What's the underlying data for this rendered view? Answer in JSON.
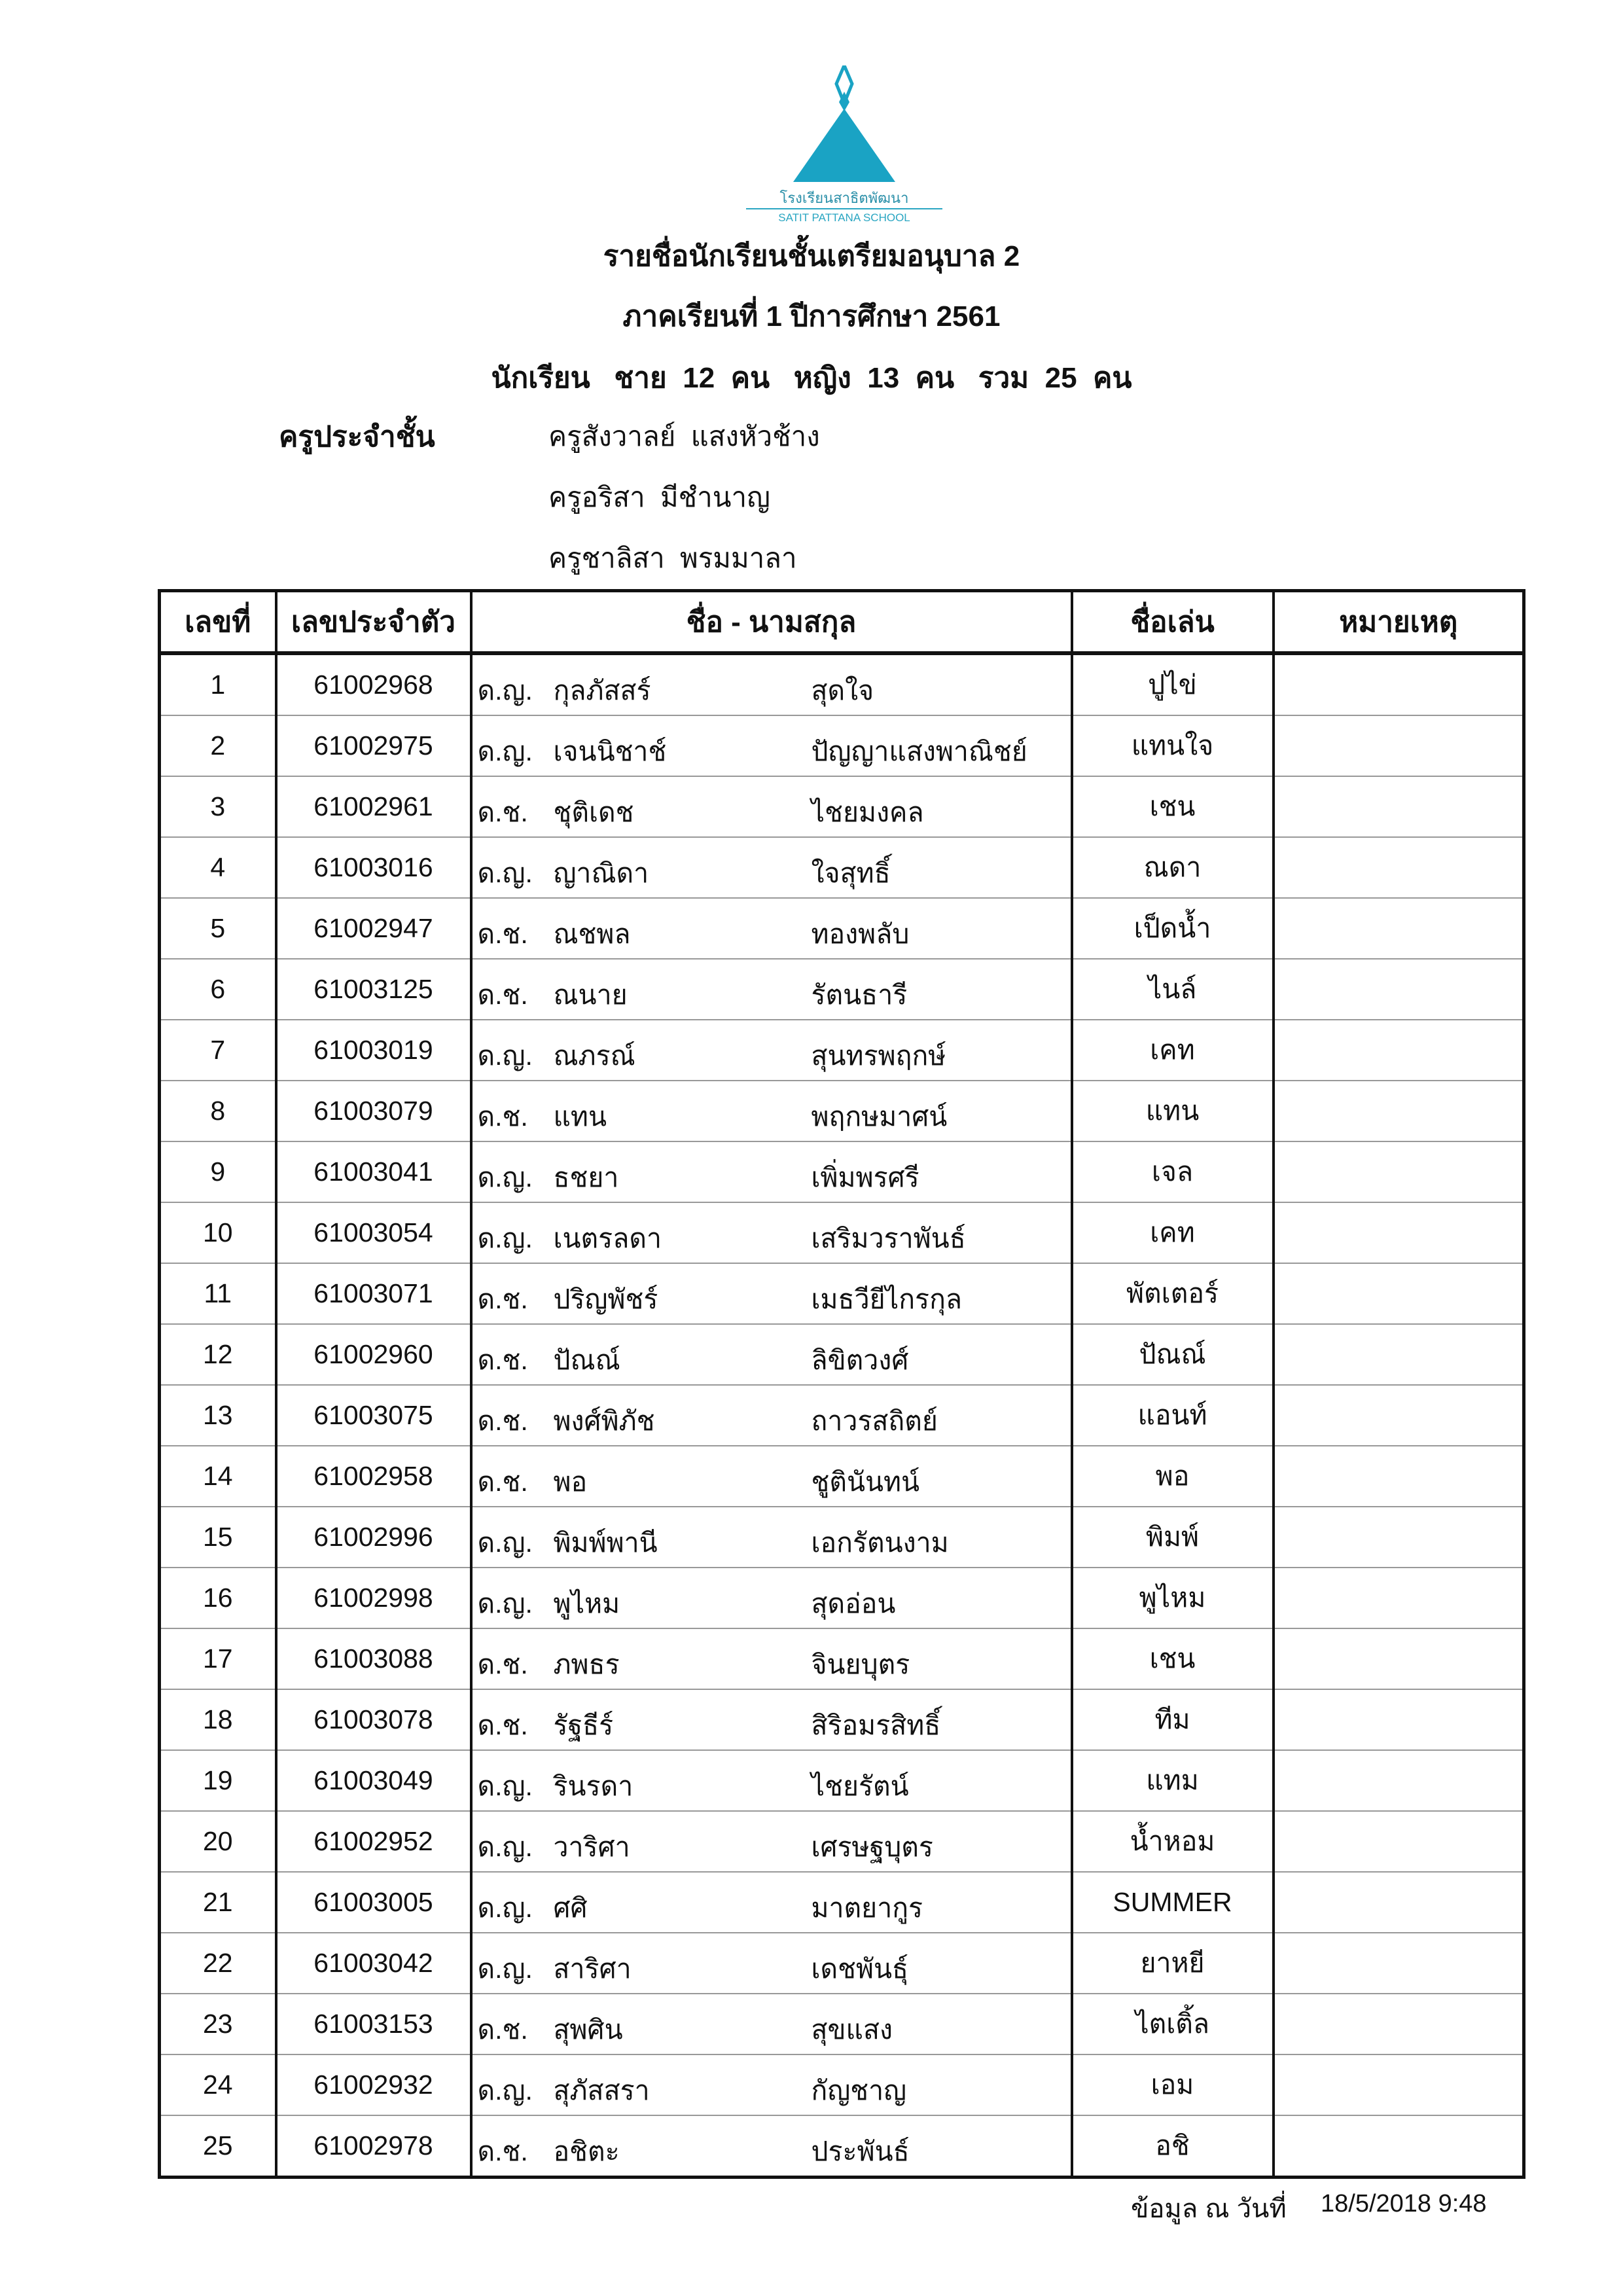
{
  "logo": {
    "name_th": "โรงเรียนสาธิตพัฒนา",
    "name_en": "SATIT PATTANA SCHOOL",
    "color": "#1aa3c4"
  },
  "header": {
    "title": "รายชื่อนักเรียนชั้นเตรียมอนุบาล 2",
    "term": "ภาคเรียนที่ 1  ปีการศึกษา  2561",
    "counts": "นักเรียน   ชาย  12  คน   หญิง  13  คน   รวม  25  คน"
  },
  "teachers": {
    "label": "ครูประจำชั้น",
    "names": [
      "ครูสังวาลย์  แสงหัวช้าง",
      "ครูอริสา  มีชำนาญ",
      "ครูชาลิสา  พรมมาลา"
    ]
  },
  "table": {
    "headers": [
      "เลขที่",
      "เลขประจำตัว",
      "ชื่อ - นามสกุล",
      "ชื่อเล่น",
      "หมายเหตุ"
    ],
    "rows": [
      [
        "1",
        "61002968",
        "ด.ญ.",
        "กุลภัสสร์",
        "สุดใจ",
        "ปูไข่",
        ""
      ],
      [
        "2",
        "61002975",
        "ด.ญ.",
        "เจนนิชาช์",
        "ปัญญาแสงพาณิชย์",
        "แทนใจ",
        ""
      ],
      [
        "3",
        "61002961",
        "ด.ช.",
        "ชุติเดช",
        "ไชยมงคล",
        "เชน",
        ""
      ],
      [
        "4",
        "61003016",
        "ด.ญ.",
        "ญาณิดา",
        "ใจสุทธิ์",
        "ณดา",
        ""
      ],
      [
        "5",
        "61002947",
        "ด.ช.",
        "ณชพล",
        "ทองพลับ",
        "เป็ดน้ำ",
        ""
      ],
      [
        "6",
        "61003125",
        "ด.ช.",
        "ณนาย",
        "รัตนธารี",
        "ไนล์",
        ""
      ],
      [
        "7",
        "61003019",
        "ด.ญ.",
        "ณภรณ์",
        "สุนทรพฤกษ์",
        "เคท",
        ""
      ],
      [
        "8",
        "61003079",
        "ด.ช.",
        "แทน",
        "พฤกษมาศน์",
        "แทน",
        ""
      ],
      [
        "9",
        "61003041",
        "ด.ญ.",
        "ธชยา",
        "เพิ่มพรศรี",
        "เจล",
        ""
      ],
      [
        "10",
        "61003054",
        "ด.ญ.",
        "เนตรลดา",
        "เสริมวราพันธ์",
        "เคท",
        ""
      ],
      [
        "11",
        "61003071",
        "ด.ช.",
        "ปริญพัชร์",
        "เมธวียีไกรกุล",
        "พัตเตอร์",
        ""
      ],
      [
        "12",
        "61002960",
        "ด.ช.",
        "ปัณณ์",
        "ลิขิตวงศ์",
        "ปัณณ์",
        ""
      ],
      [
        "13",
        "61003075",
        "ด.ช.",
        "พงศ์พิภัช",
        "ถาวรสถิตย์",
        "แอนท์",
        ""
      ],
      [
        "14",
        "61002958",
        "ด.ช.",
        "พอ",
        "ชูตินันทน์",
        "พอ",
        ""
      ],
      [
        "15",
        "61002996",
        "ด.ญ.",
        "พิมพ์พานี",
        "เอกรัตนงาม",
        "พิมพ์",
        ""
      ],
      [
        "16",
        "61002998",
        "ด.ญ.",
        "พูไหม",
        "สุดอ่อน",
        "พูไหม",
        ""
      ],
      [
        "17",
        "61003088",
        "ด.ช.",
        "ภพธร",
        "จินยบุตร",
        "เชน",
        ""
      ],
      [
        "18",
        "61003078",
        "ด.ช.",
        "รัฐธีร์",
        "สิริอมรสิทธิ์",
        "ทีม",
        ""
      ],
      [
        "19",
        "61003049",
        "ด.ญ.",
        "รินรดา",
        "ไชยรัตน์",
        "แทม",
        ""
      ],
      [
        "20",
        "61002952",
        "ด.ญ.",
        "วาริศา",
        "เศรษฐบุตร",
        "น้ำหอม",
        ""
      ],
      [
        "21",
        "61003005",
        "ด.ญ.",
        "ศศิ",
        "มาตยากูร",
        "SUMMER",
        ""
      ],
      [
        "22",
        "61003042",
        "ด.ญ.",
        "สาริศา",
        "เดชพันธุ์",
        "ยาหยี",
        ""
      ],
      [
        "23",
        "61003153",
        "ด.ช.",
        "สุพศิน",
        "สุขแสง",
        "ไตเติ้ล",
        ""
      ],
      [
        "24",
        "61002932",
        "ด.ญ.",
        "สุภัสสรา",
        "กัญชาญ",
        "เอม",
        ""
      ],
      [
        "25",
        "61002978",
        "ด.ช.",
        "อชิตะ",
        "ประพันธ์",
        "อชิ",
        ""
      ]
    ]
  },
  "footer": {
    "label": "ข้อมูล ณ วันที่",
    "date": "18/5/2018 9:48"
  }
}
